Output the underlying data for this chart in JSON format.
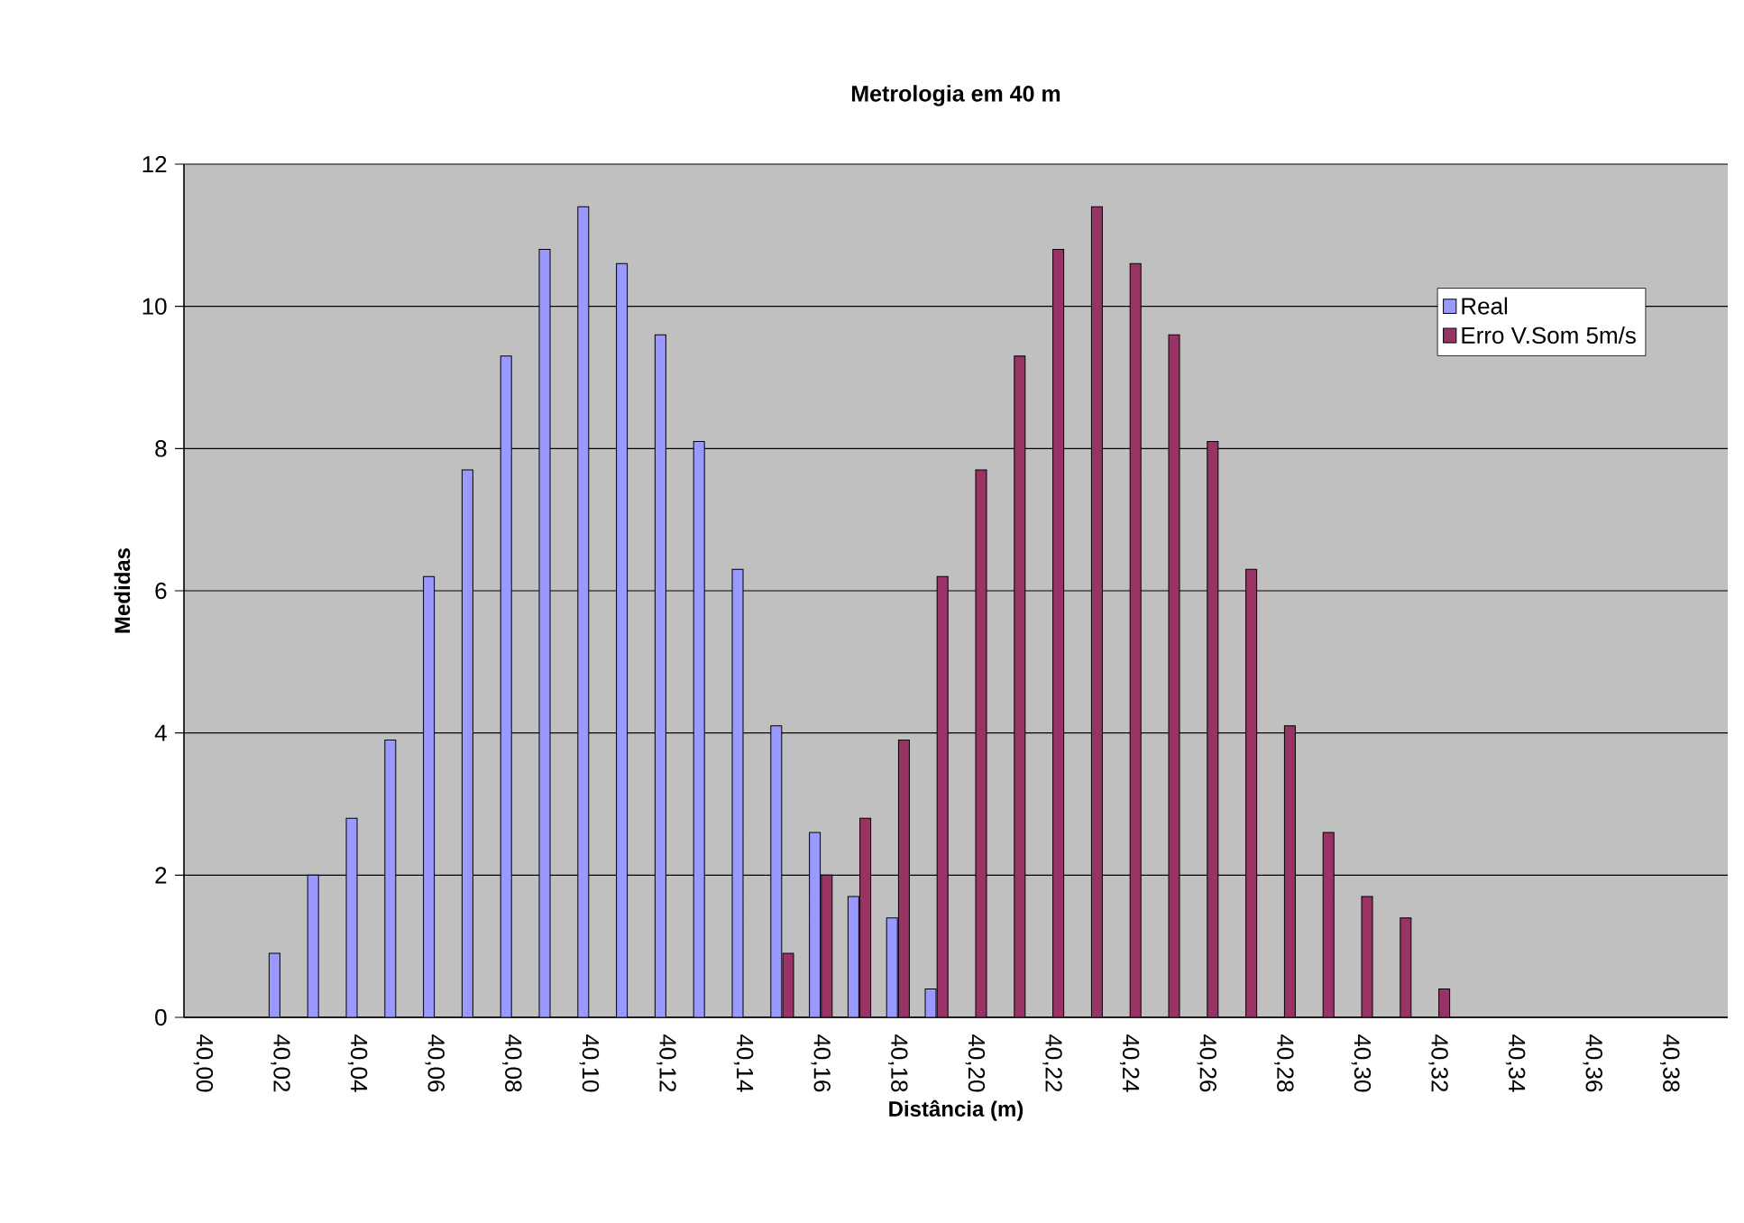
{
  "chart_data": {
    "type": "bar",
    "title": "Metrologia em 40 m",
    "xlabel": "Distância (m)",
    "ylabel": "Medidas",
    "categories": [
      "40,00",
      null,
      "40,02",
      null,
      "40,04",
      null,
      "40,06",
      null,
      "40,08",
      null,
      "40,10",
      null,
      "40,12",
      null,
      "40,14",
      null,
      "40,16",
      null,
      "40,18",
      null,
      "40,20",
      null,
      "40,22",
      null,
      "40,24",
      null,
      "40,26",
      null,
      "40,28",
      null,
      "40,30",
      null,
      "40,32",
      null,
      "40,34",
      null,
      "40,36",
      null,
      "40,38",
      null
    ],
    "series": [
      {
        "name": "Real",
        "color": "#9999ff",
        "values": [
          null,
          null,
          0.9,
          2.0,
          2.8,
          3.9,
          6.2,
          7.7,
          9.3,
          10.8,
          11.4,
          10.6,
          9.6,
          8.1,
          6.3,
          4.1,
          2.6,
          1.7,
          1.4,
          0.4,
          null,
          null,
          null,
          null,
          null,
          null,
          null,
          null,
          null,
          null,
          null,
          null,
          null,
          null,
          null,
          null,
          null,
          null,
          null,
          null
        ]
      },
      {
        "name": "Erro V.Som 5m/s",
        "color": "#993366",
        "values": [
          null,
          null,
          null,
          null,
          null,
          null,
          null,
          null,
          null,
          null,
          null,
          null,
          null,
          null,
          null,
          0.9,
          2.0,
          2.8,
          3.9,
          6.2,
          7.7,
          9.3,
          10.8,
          11.4,
          10.6,
          9.6,
          8.1,
          6.3,
          4.1,
          2.6,
          1.7,
          1.4,
          0.4,
          null,
          null,
          null,
          null,
          null,
          null,
          null
        ]
      }
    ],
    "ylim": [
      0,
      12
    ],
    "yticks": [
      0,
      2,
      4,
      6,
      8,
      10,
      12
    ],
    "grid": "y",
    "legend": "top right"
  }
}
